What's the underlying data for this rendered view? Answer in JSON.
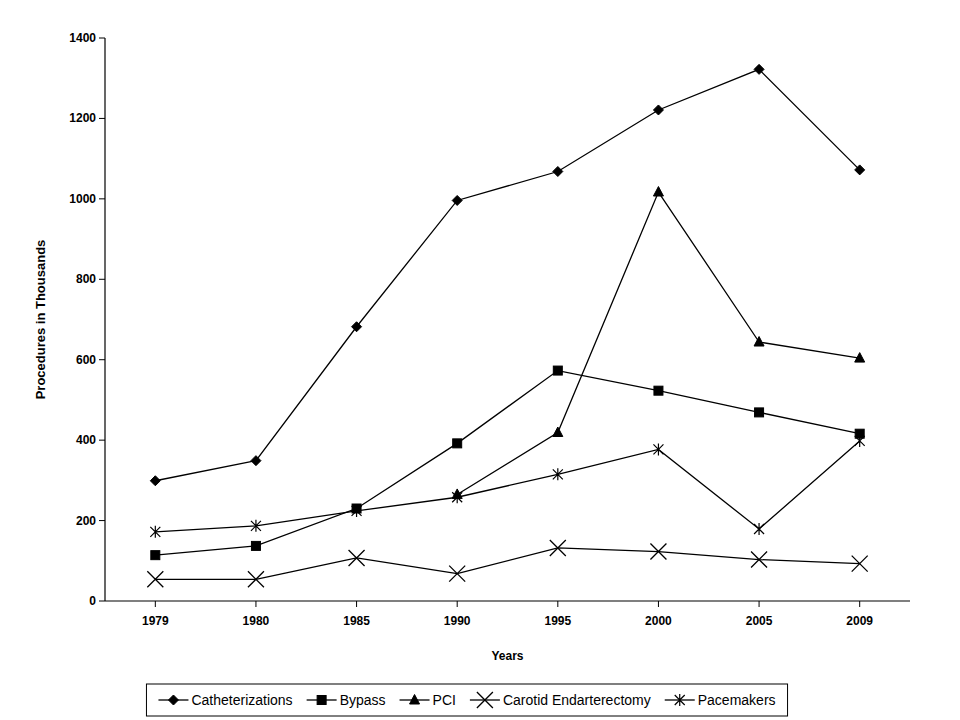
{
  "chart_data": {
    "type": "line",
    "x_label": "Years",
    "y_label": "Procedures in Thousands",
    "categories": [
      "1979",
      "1980",
      "1985",
      "1990",
      "1995",
      "2000",
      "2005",
      "2009"
    ],
    "ylim": [
      0,
      1400
    ],
    "yticks": [
      0,
      200,
      400,
      600,
      800,
      1000,
      1200,
      1400
    ],
    "grid": false,
    "legend": "bottom",
    "series": [
      {
        "name": "Catheterizations",
        "color": "#000000",
        "marker": "diamond",
        "line_style": "solid",
        "values": [
          299,
          349,
          682,
          996,
          1068,
          1221,
          1322,
          1072
        ]
      },
      {
        "name": "Bypass",
        "color": "#000000",
        "marker": "square",
        "line_style": "solid",
        "values": [
          114,
          137,
          230,
          392,
          573,
          523,
          469,
          416
        ]
      },
      {
        "name": "PCI",
        "color": "#000000",
        "marker": "triangle",
        "line_style": "solid",
        "values": [
          null,
          null,
          null,
          265,
          419,
          1017,
          644,
          604
        ]
      },
      {
        "name": "Carotid Endarterectomy",
        "color": "#000000",
        "marker": "x",
        "line_style": "solid",
        "values": [
          54,
          54,
          107,
          68,
          132,
          123,
          103,
          93
        ]
      },
      {
        "name": "Pacemakers",
        "color": "#000000",
        "marker": "asterisk",
        "line_style": "solid",
        "values": [
          172,
          187,
          224,
          258,
          315,
          377,
          179,
          398
        ]
      }
    ]
  }
}
